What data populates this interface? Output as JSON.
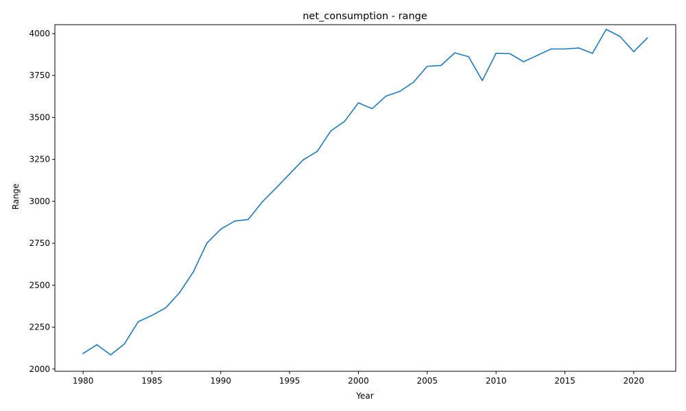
{
  "chart_data": {
    "type": "line",
    "title": "net_consumption - range",
    "xlabel": "Year",
    "ylabel": "Range",
    "xlim": [
      1977.95,
      2023.05
    ],
    "ylim": [
      1987,
      4053
    ],
    "xticks": [
      1980,
      1985,
      1990,
      1995,
      2000,
      2005,
      2010,
      2015,
      2020
    ],
    "yticks": [
      2000,
      2250,
      2500,
      2750,
      3000,
      3250,
      3500,
      3750,
      4000
    ],
    "grid": false,
    "line_color": "#1f77b4",
    "series": [
      {
        "x": [
          1980,
          1981,
          1982,
          1983,
          1984,
          1985,
          1986,
          1987,
          1988,
          1989,
          1990,
          1991,
          1992,
          1993,
          1994,
          1995,
          1996,
          1997,
          1998,
          1999,
          2000,
          2001,
          2002,
          2003,
          2004,
          2005,
          2006,
          2007,
          2008,
          2009,
          2010,
          2011,
          2012,
          2013,
          2014,
          2015,
          2016,
          2017,
          2018,
          2019,
          2020,
          2021
        ],
        "values": [
          2093,
          2145,
          2085,
          2150,
          2282,
          2320,
          2365,
          2455,
          2578,
          2752,
          2834,
          2882,
          2892,
          2995,
          3078,
          3163,
          3248,
          3297,
          3420,
          3477,
          3587,
          3552,
          3627,
          3655,
          3710,
          3805,
          3810,
          3885,
          3862,
          3720,
          3883,
          3880,
          3832,
          3870,
          3908,
          3908,
          3914,
          3882,
          4025,
          3983,
          3892,
          3974
        ]
      }
    ]
  }
}
